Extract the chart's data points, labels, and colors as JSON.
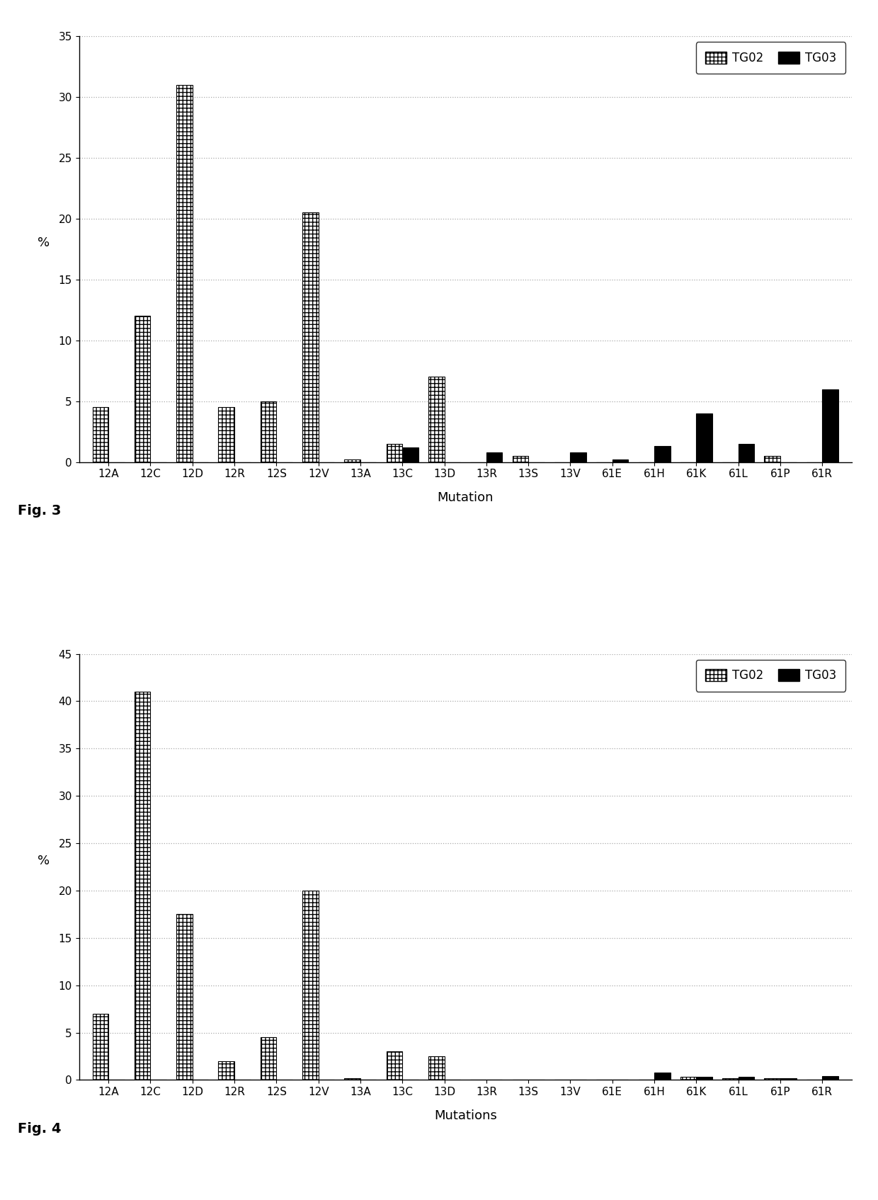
{
  "categories": [
    "12A",
    "12C",
    "12D",
    "12R",
    "12S",
    "12V",
    "13A",
    "13C",
    "13D",
    "13R",
    "13S",
    "13V",
    "61E",
    "61H",
    "61K",
    "61L",
    "61P",
    "61R"
  ],
  "fig3": {
    "tg02": [
      4.5,
      12,
      31,
      4.5,
      5,
      20.5,
      0.2,
      1.5,
      7,
      0,
      0.5,
      0,
      0,
      0,
      0,
      0,
      0.5,
      0
    ],
    "tg03": [
      0,
      0,
      0,
      0,
      0,
      0,
      0,
      1.2,
      0,
      0.8,
      0,
      0.8,
      0.2,
      1.3,
      4,
      1.5,
      0,
      6
    ],
    "ylabel": "%",
    "xlabel": "Mutation",
    "ymax": 35,
    "yticks": [
      0,
      5,
      10,
      15,
      20,
      25,
      30,
      35
    ],
    "fig_label": "Fig. 3"
  },
  "fig4": {
    "tg02": [
      7,
      41,
      17.5,
      2,
      4.5,
      20,
      0.2,
      3,
      2.5,
      0,
      0,
      0,
      0,
      0,
      0.3,
      0.2,
      0.2,
      0
    ],
    "tg03": [
      0,
      0,
      0,
      0,
      0,
      0,
      0,
      0,
      0,
      0,
      0,
      0,
      0,
      0.8,
      0.3,
      0.3,
      0.2,
      0.4
    ],
    "ylabel": "%",
    "xlabel": "Mutations",
    "ymax": 45,
    "yticks": [
      0,
      5,
      10,
      15,
      20,
      25,
      30,
      35,
      40,
      45
    ],
    "fig_label": "Fig. 4"
  },
  "tg02_hatch": "+++",
  "tg03_color": "#000000",
  "tg02_facecolor": "#ffffff",
  "bar_width": 0.38,
  "legend_labels": [
    "TG02",
    "TG03"
  ],
  "background_color": "#ffffff",
  "grid_color": "#aaaaaa",
  "grid_linestyle": ":",
  "font_family": "DejaVu Sans"
}
